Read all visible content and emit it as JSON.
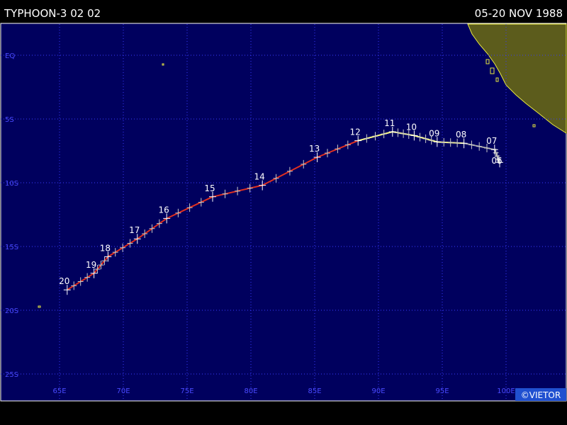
{
  "title": "TYPHOON-3 02 02",
  "date_range": "05-20 NOV 1988",
  "credit": "©VIETOR",
  "meridians": [
    {
      "value": 65,
      "label": "65E"
    },
    {
      "value": 70,
      "label": "70E"
    },
    {
      "value": 75,
      "label": "75E"
    },
    {
      "value": 80,
      "label": "80E"
    },
    {
      "value": 85,
      "label": "85E"
    },
    {
      "value": 90,
      "label": "90E"
    },
    {
      "value": 95,
      "label": "95E"
    },
    {
      "value": 100,
      "label": "100E"
    }
  ],
  "parallels": [
    {
      "value": 0,
      "label": "EQ"
    },
    {
      "value": -5,
      "label": "5S"
    },
    {
      "value": -10,
      "label": "10S"
    },
    {
      "value": -15,
      "label": "15S"
    },
    {
      "value": -20,
      "label": "20S"
    },
    {
      "value": -25,
      "label": "25S"
    }
  ],
  "track": [
    {
      "label": "06",
      "lon": 99.5,
      "lat": -8.4,
      "color": "#a8a8a8"
    },
    {
      "label": "07",
      "lon": 99.1,
      "lat": -7.4,
      "color": "#a8a8a8"
    },
    {
      "label": "08",
      "lon": 96.7,
      "lat": -6.9,
      "color": "#ffff80"
    },
    {
      "label": "09",
      "lon": 94.6,
      "lat": -6.8,
      "color": "#ffff80"
    },
    {
      "label": "10",
      "lon": 92.8,
      "lat": -6.3,
      "color": "#ffff80"
    },
    {
      "label": "11",
      "lon": 91.1,
      "lat": -6.0,
      "color": "#ffff80"
    },
    {
      "label": "12",
      "lon": 88.4,
      "lat": -6.7,
      "color": "#e03020"
    },
    {
      "label": "13",
      "lon": 85.2,
      "lat": -8.0,
      "color": "#e03020"
    },
    {
      "label": "14",
      "lon": 80.9,
      "lat": -10.2,
      "color": "#e03020"
    },
    {
      "label": "15",
      "lon": 77.0,
      "lat": -11.1,
      "color": "#e03020"
    },
    {
      "label": "16",
      "lon": 73.4,
      "lat": -12.8,
      "color": "#e03020"
    },
    {
      "label": "17",
      "lon": 71.1,
      "lat": -14.4,
      "color": "#e03020"
    },
    {
      "label": "18",
      "lon": 68.8,
      "lat": -15.8,
      "color": "#e03020"
    },
    {
      "label": "19",
      "lon": 67.7,
      "lat": -17.1,
      "color": "#e03020"
    },
    {
      "label": "20",
      "lon": 65.6,
      "lat": -18.4,
      "color": "#e03020"
    }
  ]
}
